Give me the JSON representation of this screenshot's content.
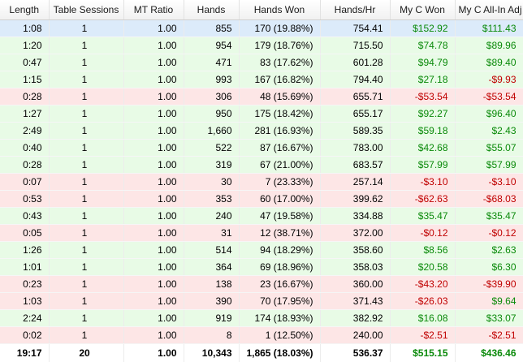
{
  "columns": [
    "Length",
    "Table Sessions",
    "MT Ratio",
    "Hands",
    "Hands Won",
    "Hands/Hr",
    "My C Won",
    "My C All-In Adj"
  ],
  "colors": {
    "positive_row": "#e8fbe6",
    "negative_row": "#fde6e6",
    "selected_row": "#dcebfa",
    "gain_text": "#0a8a0a",
    "loss_text": "#c00000"
  },
  "rows": [
    {
      "length": "1:08",
      "table_sessions": "1",
      "mt_ratio": "1.00",
      "hands": "855",
      "hands_won": "170 (19.88%)",
      "hands_hr": "754.41",
      "c_won": "$152.92",
      "c_allin": "$111.43",
      "state": "sel",
      "won_sign": "g",
      "allin_sign": "g"
    },
    {
      "length": "1:20",
      "table_sessions": "1",
      "mt_ratio": "1.00",
      "hands": "954",
      "hands_won": "179 (18.76%)",
      "hands_hr": "715.50",
      "c_won": "$74.78",
      "c_allin": "$89.96",
      "state": "pos",
      "won_sign": "g",
      "allin_sign": "g"
    },
    {
      "length": "0:47",
      "table_sessions": "1",
      "mt_ratio": "1.00",
      "hands": "471",
      "hands_won": "83 (17.62%)",
      "hands_hr": "601.28",
      "c_won": "$94.79",
      "c_allin": "$89.40",
      "state": "pos",
      "won_sign": "g",
      "allin_sign": "g"
    },
    {
      "length": "1:15",
      "table_sessions": "1",
      "mt_ratio": "1.00",
      "hands": "993",
      "hands_won": "167 (16.82%)",
      "hands_hr": "794.40",
      "c_won": "$27.18",
      "c_allin": "-$9.93",
      "state": "pos",
      "won_sign": "g",
      "allin_sign": "r"
    },
    {
      "length": "0:28",
      "table_sessions": "1",
      "mt_ratio": "1.00",
      "hands": "306",
      "hands_won": "48 (15.69%)",
      "hands_hr": "655.71",
      "c_won": "-$53.54",
      "c_allin": "-$53.54",
      "state": "neg",
      "won_sign": "r",
      "allin_sign": "r"
    },
    {
      "length": "1:27",
      "table_sessions": "1",
      "mt_ratio": "1.00",
      "hands": "950",
      "hands_won": "175 (18.42%)",
      "hands_hr": "655.17",
      "c_won": "$92.27",
      "c_allin": "$96.40",
      "state": "pos",
      "won_sign": "g",
      "allin_sign": "g"
    },
    {
      "length": "2:49",
      "table_sessions": "1",
      "mt_ratio": "1.00",
      "hands": "1,660",
      "hands_won": "281 (16.93%)",
      "hands_hr": "589.35",
      "c_won": "$59.18",
      "c_allin": "$2.43",
      "state": "pos",
      "won_sign": "g",
      "allin_sign": "g"
    },
    {
      "length": "0:40",
      "table_sessions": "1",
      "mt_ratio": "1.00",
      "hands": "522",
      "hands_won": "87 (16.67%)",
      "hands_hr": "783.00",
      "c_won": "$42.68",
      "c_allin": "$55.07",
      "state": "pos",
      "won_sign": "g",
      "allin_sign": "g"
    },
    {
      "length": "0:28",
      "table_sessions": "1",
      "mt_ratio": "1.00",
      "hands": "319",
      "hands_won": "67 (21.00%)",
      "hands_hr": "683.57",
      "c_won": "$57.99",
      "c_allin": "$57.99",
      "state": "pos",
      "won_sign": "g",
      "allin_sign": "g"
    },
    {
      "length": "0:07",
      "table_sessions": "1",
      "mt_ratio": "1.00",
      "hands": "30",
      "hands_won": "7 (23.33%)",
      "hands_hr": "257.14",
      "c_won": "-$3.10",
      "c_allin": "-$3.10",
      "state": "neg",
      "won_sign": "r",
      "allin_sign": "r"
    },
    {
      "length": "0:53",
      "table_sessions": "1",
      "mt_ratio": "1.00",
      "hands": "353",
      "hands_won": "60 (17.00%)",
      "hands_hr": "399.62",
      "c_won": "-$62.63",
      "c_allin": "-$68.03",
      "state": "neg",
      "won_sign": "r",
      "allin_sign": "r"
    },
    {
      "length": "0:43",
      "table_sessions": "1",
      "mt_ratio": "1.00",
      "hands": "240",
      "hands_won": "47 (19.58%)",
      "hands_hr": "334.88",
      "c_won": "$35.47",
      "c_allin": "$35.47",
      "state": "pos",
      "won_sign": "g",
      "allin_sign": "g"
    },
    {
      "length": "0:05",
      "table_sessions": "1",
      "mt_ratio": "1.00",
      "hands": "31",
      "hands_won": "12 (38.71%)",
      "hands_hr": "372.00",
      "c_won": "-$0.12",
      "c_allin": "-$0.12",
      "state": "neg",
      "won_sign": "r",
      "allin_sign": "r"
    },
    {
      "length": "1:26",
      "table_sessions": "1",
      "mt_ratio": "1.00",
      "hands": "514",
      "hands_won": "94 (18.29%)",
      "hands_hr": "358.60",
      "c_won": "$8.56",
      "c_allin": "$2.63",
      "state": "pos",
      "won_sign": "g",
      "allin_sign": "g"
    },
    {
      "length": "1:01",
      "table_sessions": "1",
      "mt_ratio": "1.00",
      "hands": "364",
      "hands_won": "69 (18.96%)",
      "hands_hr": "358.03",
      "c_won": "$20.58",
      "c_allin": "$6.30",
      "state": "pos",
      "won_sign": "g",
      "allin_sign": "g"
    },
    {
      "length": "0:23",
      "table_sessions": "1",
      "mt_ratio": "1.00",
      "hands": "138",
      "hands_won": "23 (16.67%)",
      "hands_hr": "360.00",
      "c_won": "-$43.20",
      "c_allin": "-$39.90",
      "state": "neg",
      "won_sign": "r",
      "allin_sign": "r"
    },
    {
      "length": "1:03",
      "table_sessions": "1",
      "mt_ratio": "1.00",
      "hands": "390",
      "hands_won": "70 (17.95%)",
      "hands_hr": "371.43",
      "c_won": "-$26.03",
      "c_allin": "$9.64",
      "state": "neg",
      "won_sign": "r",
      "allin_sign": "g"
    },
    {
      "length": "2:24",
      "table_sessions": "1",
      "mt_ratio": "1.00",
      "hands": "919",
      "hands_won": "174 (18.93%)",
      "hands_hr": "382.92",
      "c_won": "$16.08",
      "c_allin": "$33.07",
      "state": "pos",
      "won_sign": "g",
      "allin_sign": "g"
    },
    {
      "length": "0:02",
      "table_sessions": "1",
      "mt_ratio": "1.00",
      "hands": "8",
      "hands_won": "1 (12.50%)",
      "hands_hr": "240.00",
      "c_won": "-$2.51",
      "c_allin": "-$2.51",
      "state": "neg",
      "won_sign": "r",
      "allin_sign": "r"
    }
  ],
  "totals": {
    "length": "19:17",
    "table_sessions": "20",
    "mt_ratio": "1.00",
    "hands": "10,343",
    "hands_won": "1,865 (18.03%)",
    "hands_hr": "536.37",
    "c_won": "$515.15",
    "c_allin": "$436.46"
  }
}
